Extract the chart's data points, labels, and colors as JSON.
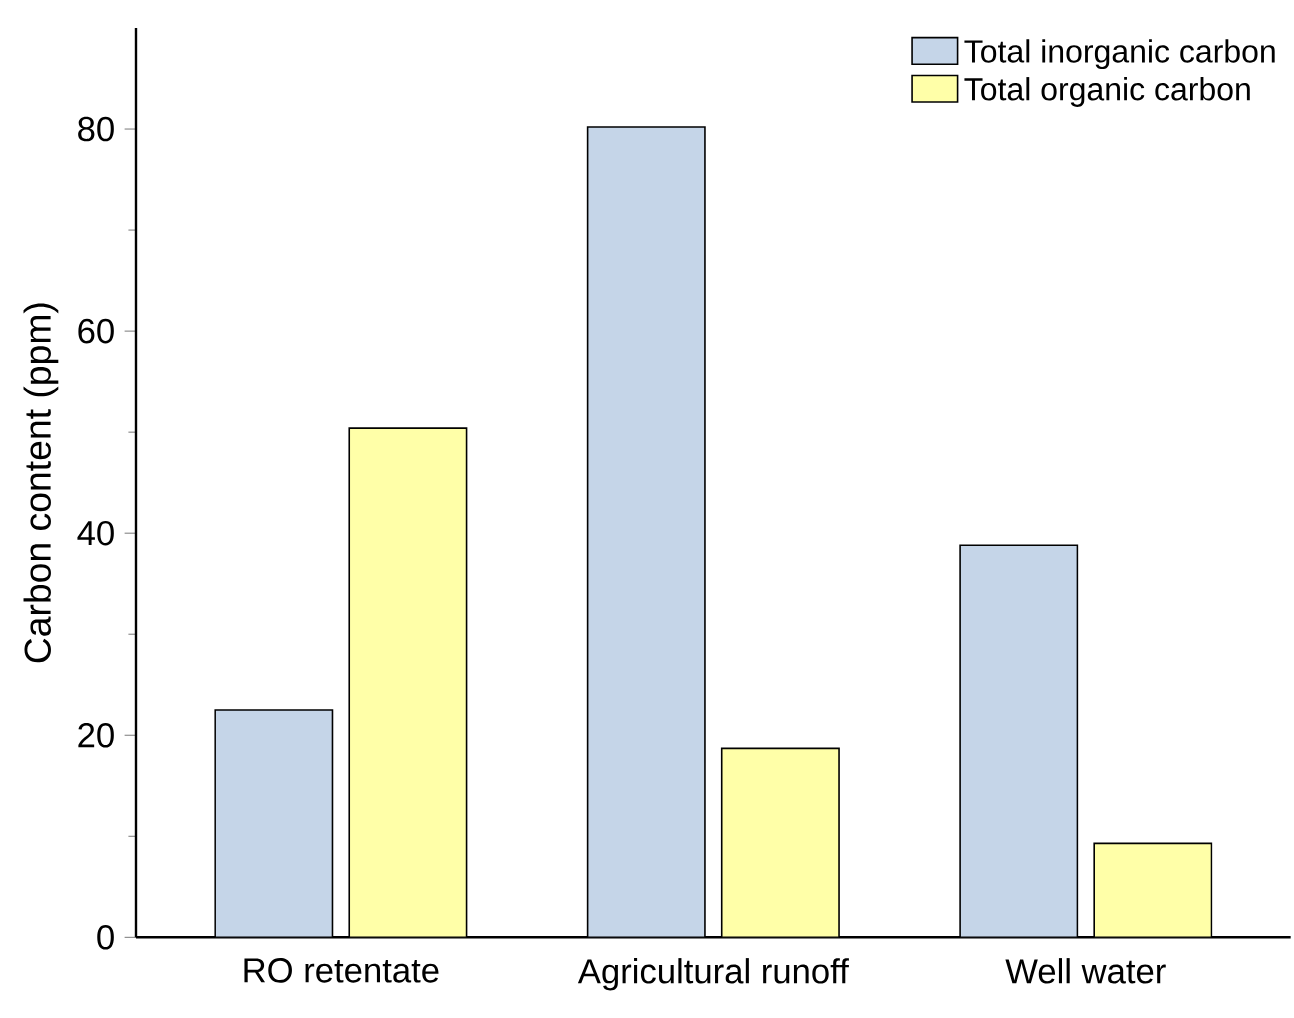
{
  "chart_data": {
    "type": "bar",
    "ylabel": "Carbon content (ppm)",
    "categories": [
      "RO retentate",
      "Agricultural runoff",
      "Well water"
    ],
    "series": [
      {
        "name": "Total inorganic carbon",
        "color": "#c5d5e8",
        "values": [
          22.5,
          80.2,
          38.8
        ]
      },
      {
        "name": "Total organic carbon",
        "color": "#ffffa8",
        "values": [
          50.4,
          18.7,
          9.3
        ]
      }
    ],
    "ylim": [
      0,
      90
    ],
    "yticks": [
      0,
      20,
      40,
      60,
      80
    ],
    "legend": "top right",
    "grid": false
  }
}
